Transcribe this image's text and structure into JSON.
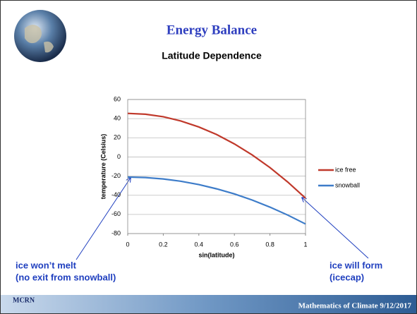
{
  "slide": {
    "title": "Energy Balance",
    "subtitle": "Latitude Dependence",
    "note_left": [
      "ice won’t melt",
      "(no exit from snowball)"
    ],
    "note_right": [
      "ice will form",
      "(icecap)"
    ],
    "logo": "MCRN",
    "footer": "Mathematics of Climate  9/12/2017"
  },
  "chart_data": {
    "type": "line",
    "x_label": "sin(latitude)",
    "y_label": "temperature (Celsius)",
    "x": [
      0,
      0.1,
      0.2,
      0.3,
      0.4,
      0.5,
      0.6,
      0.7,
      0.8,
      0.9,
      1
    ],
    "series": [
      {
        "name": "ice free",
        "color": "#c0392b",
        "values": [
          45.5,
          44.6,
          42.0,
          37.5,
          31.3,
          23.4,
          13.6,
          2.1,
          -11.1,
          -26.2,
          -43
        ]
      },
      {
        "name": "snowball",
        "color": "#3d7cc9",
        "values": [
          -21,
          -21.5,
          -23.0,
          -25.4,
          -28.8,
          -33.3,
          -38.6,
          -45.0,
          -52.4,
          -60.7,
          -70
        ]
      }
    ],
    "xlim": [
      0,
      1
    ],
    "xticks": [
      0,
      0.2,
      0.4,
      0.6,
      0.8,
      1
    ],
    "ylim": [
      -80,
      60
    ],
    "yticks": [
      -80,
      -60,
      -40,
      -20,
      0,
      20,
      40,
      60
    ],
    "grid": true,
    "legend": "right"
  }
}
